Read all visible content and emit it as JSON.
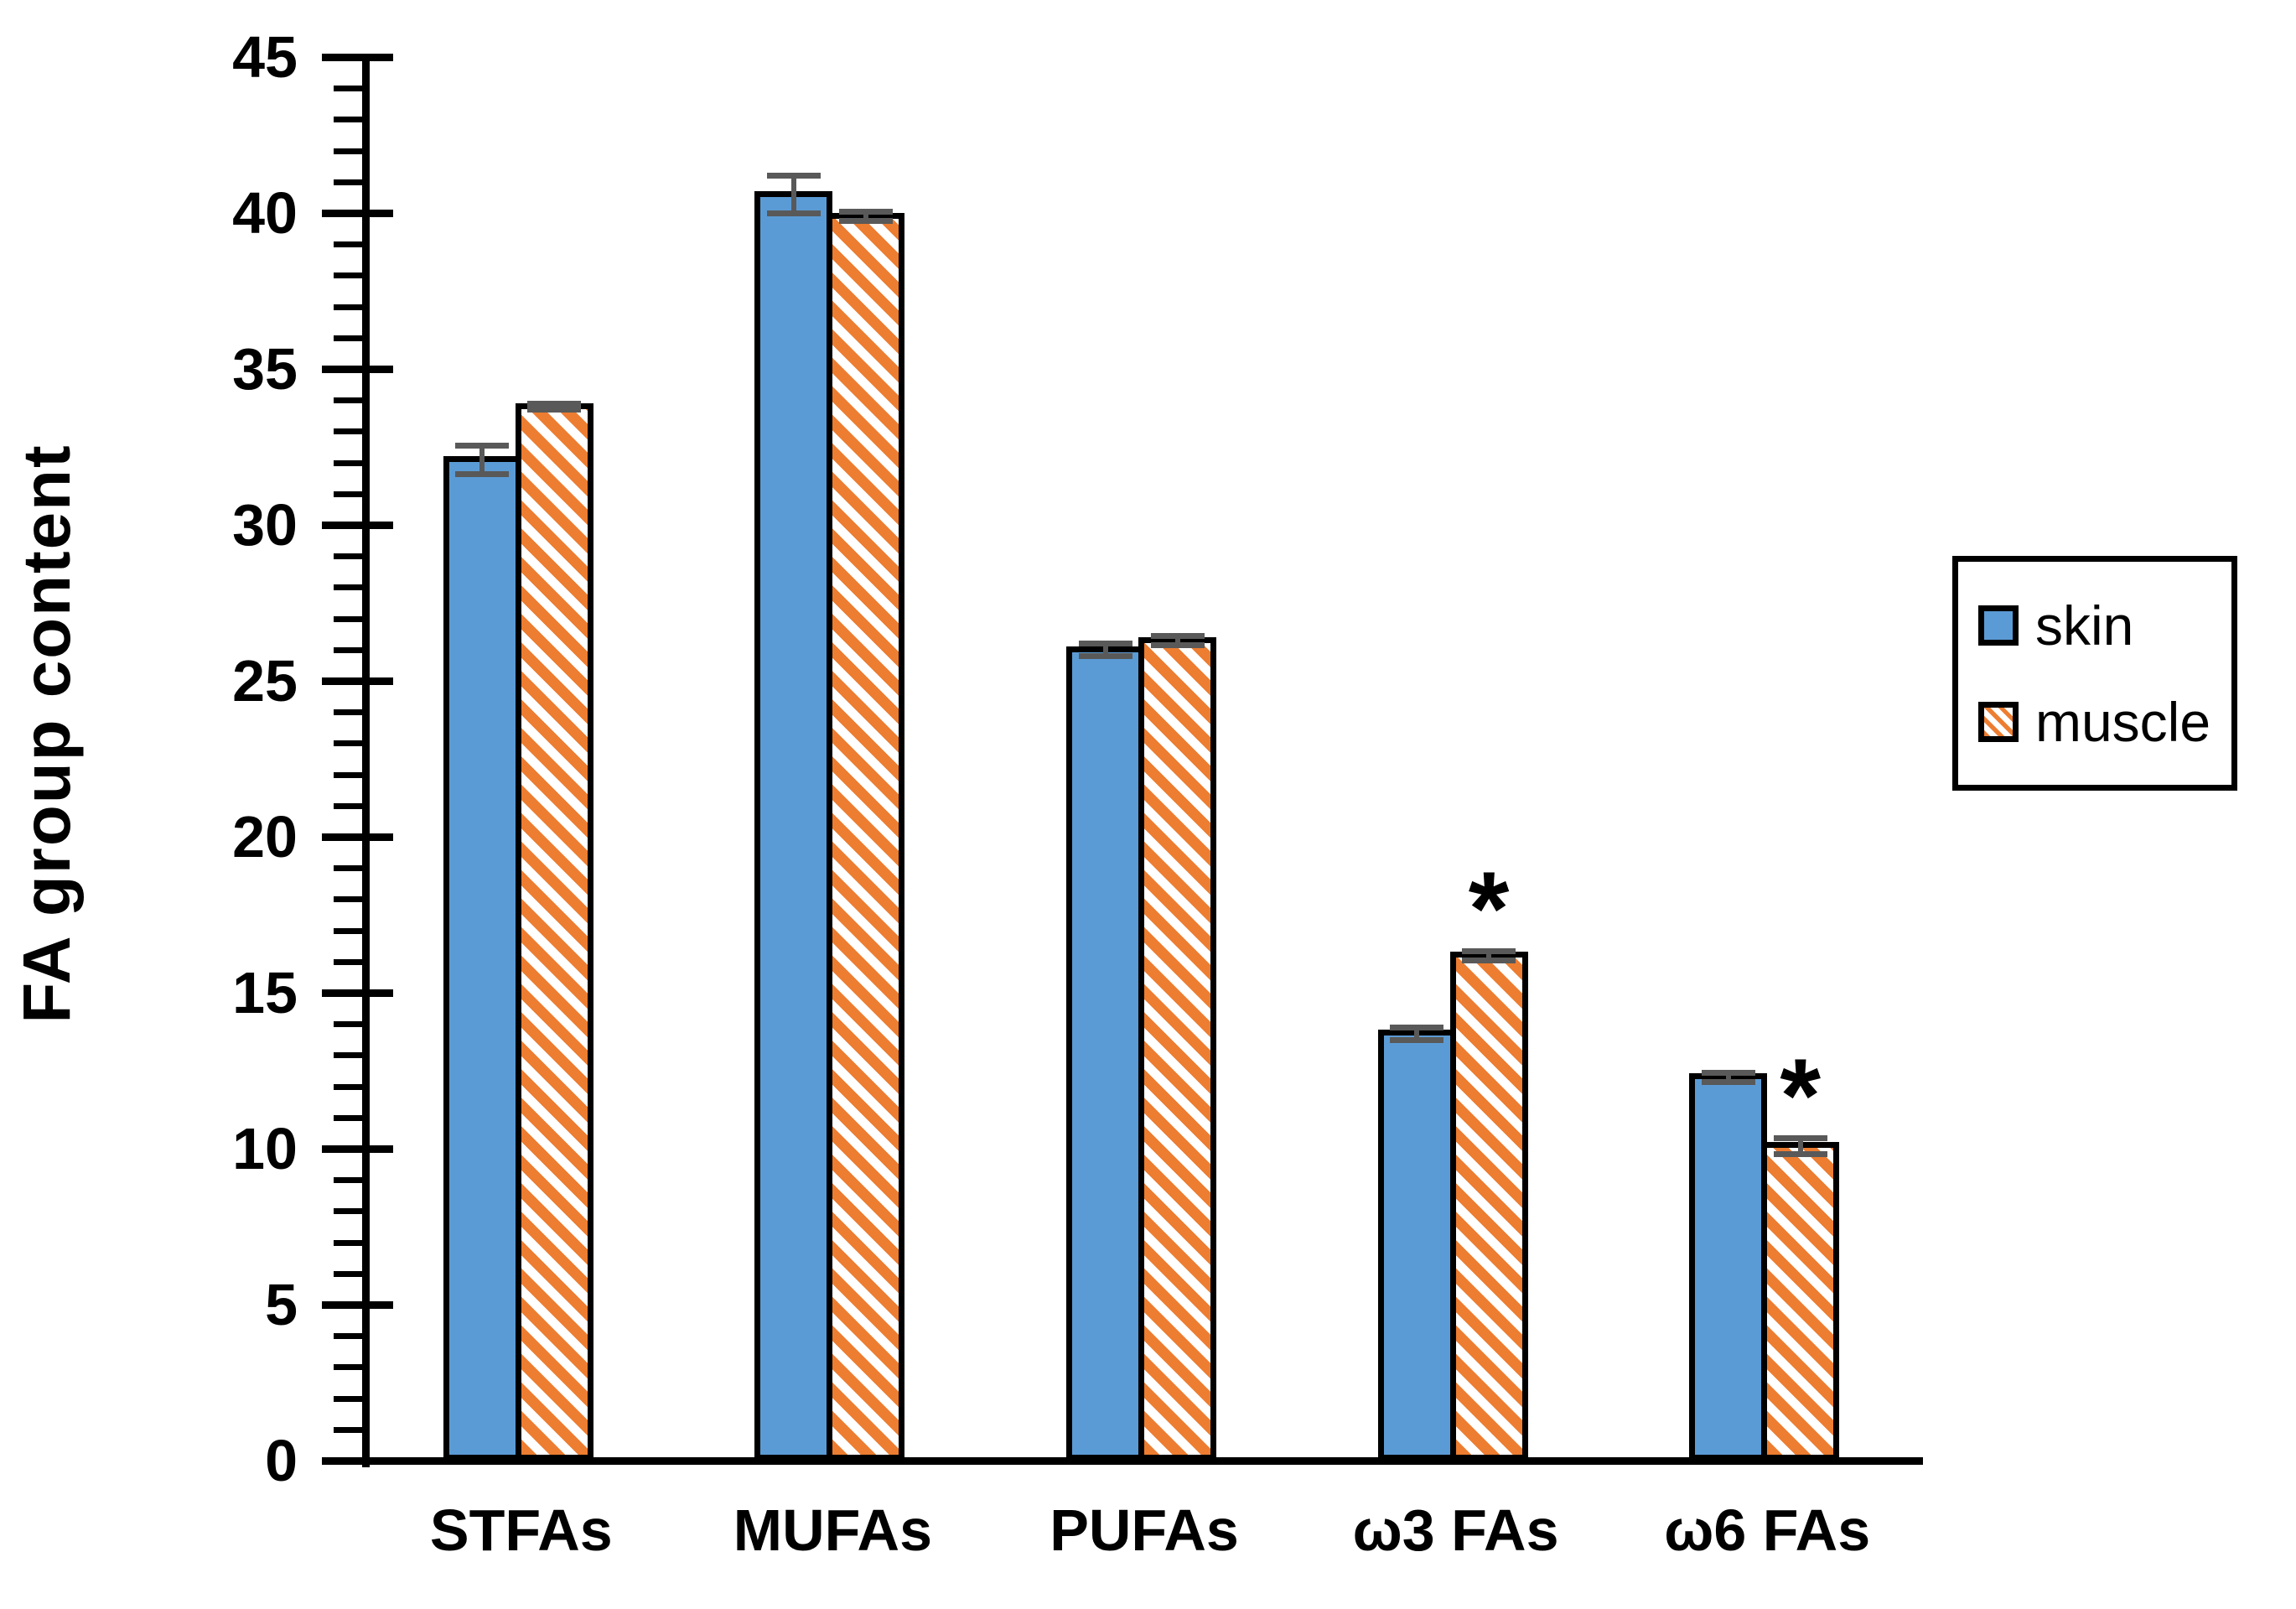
{
  "chart_data": {
    "type": "bar",
    "title": "",
    "xlabel": "",
    "ylabel": "FA group content",
    "categories": [
      "STFAs",
      "MUFAs",
      "PUFAs",
      "ω3 FAs",
      "ω6 FAs"
    ],
    "series": [
      {
        "name": "skin",
        "pattern": "solid",
        "color": "#5B9BD5",
        "values": [
          32.1,
          40.6,
          26.0,
          13.7,
          12.3
        ],
        "errors": [
          0.45,
          0.6,
          0.2,
          0.2,
          0.15
        ]
      },
      {
        "name": "muscle",
        "pattern": "diagonal-hatch",
        "color": "#ED7D31",
        "values": [
          33.8,
          39.9,
          26.3,
          16.2,
          10.1
        ],
        "errors": [
          0.1,
          0.15,
          0.15,
          0.15,
          0.25
        ]
      }
    ],
    "significance_markers": [
      {
        "category": "ω3 FAs",
        "category_index": 3,
        "series": "muscle",
        "marker": "*"
      },
      {
        "category": "ω6 FAs",
        "category_index": 4,
        "series": "muscle",
        "marker": "*"
      }
    ],
    "ylim": [
      0,
      45
    ],
    "y_major_ticks": [
      0,
      5,
      10,
      15,
      20,
      25,
      30,
      35,
      40,
      45
    ],
    "y_minor_tick_step": 1,
    "grid": false,
    "legend_position": "right",
    "colors": {
      "bar_outline": "#000000",
      "error_bar": "#595959",
      "axis": "#000000",
      "background": "#ffffff"
    }
  }
}
